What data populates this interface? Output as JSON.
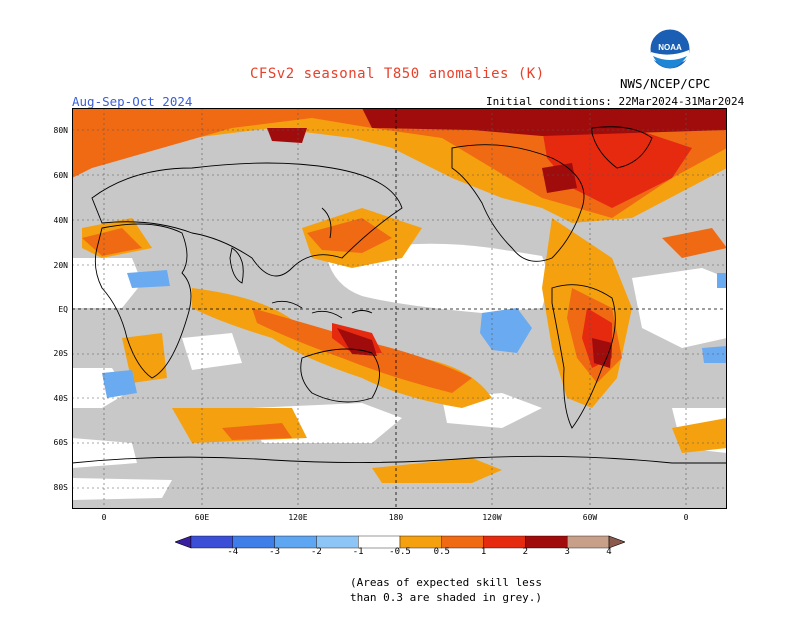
{
  "title": "CFSv2 seasonal T850 anomalies (K)",
  "season": "Aug-Sep-Oct 2024",
  "initial_conditions": "Initial conditions: 22Mar2024-31Mar2024",
  "agency": "NWS/NCEP/CPC",
  "logo_text": "NOAA",
  "lat_labels": [
    "80N",
    "60N",
    "40N",
    "20N",
    "EQ",
    "20S",
    "40S",
    "60S",
    "80S"
  ],
  "lon_labels": [
    "0",
    "60E",
    "120E",
    "180",
    "120W",
    "60W",
    "0"
  ],
  "colorbar": {
    "ticks": [
      "-4",
      "-3",
      "-2",
      "-1",
      "-0.5",
      "0.5",
      "1",
      "2",
      "3",
      "4"
    ],
    "colors": [
      "#3a1fa0",
      "#3b4fd6",
      "#3f7ee8",
      "#5fa6f2",
      "#8ec5f7",
      "#ffffff",
      "#f5a10f",
      "#f06a14",
      "#e52a10",
      "#a00c0c",
      "#c8a08a",
      "#8a5a4a"
    ]
  },
  "note": [
    "(Areas of expected skill less",
    "than 0.3 are shaded in grey.)"
  ],
  "legend_colors": {
    "grey": "#c8c8c8",
    "orange": "#f5a10f",
    "red_orange": "#f06a14",
    "red": "#e52a10",
    "dark_red": "#a00c0c",
    "light_blue": "#6aaaf0"
  }
}
